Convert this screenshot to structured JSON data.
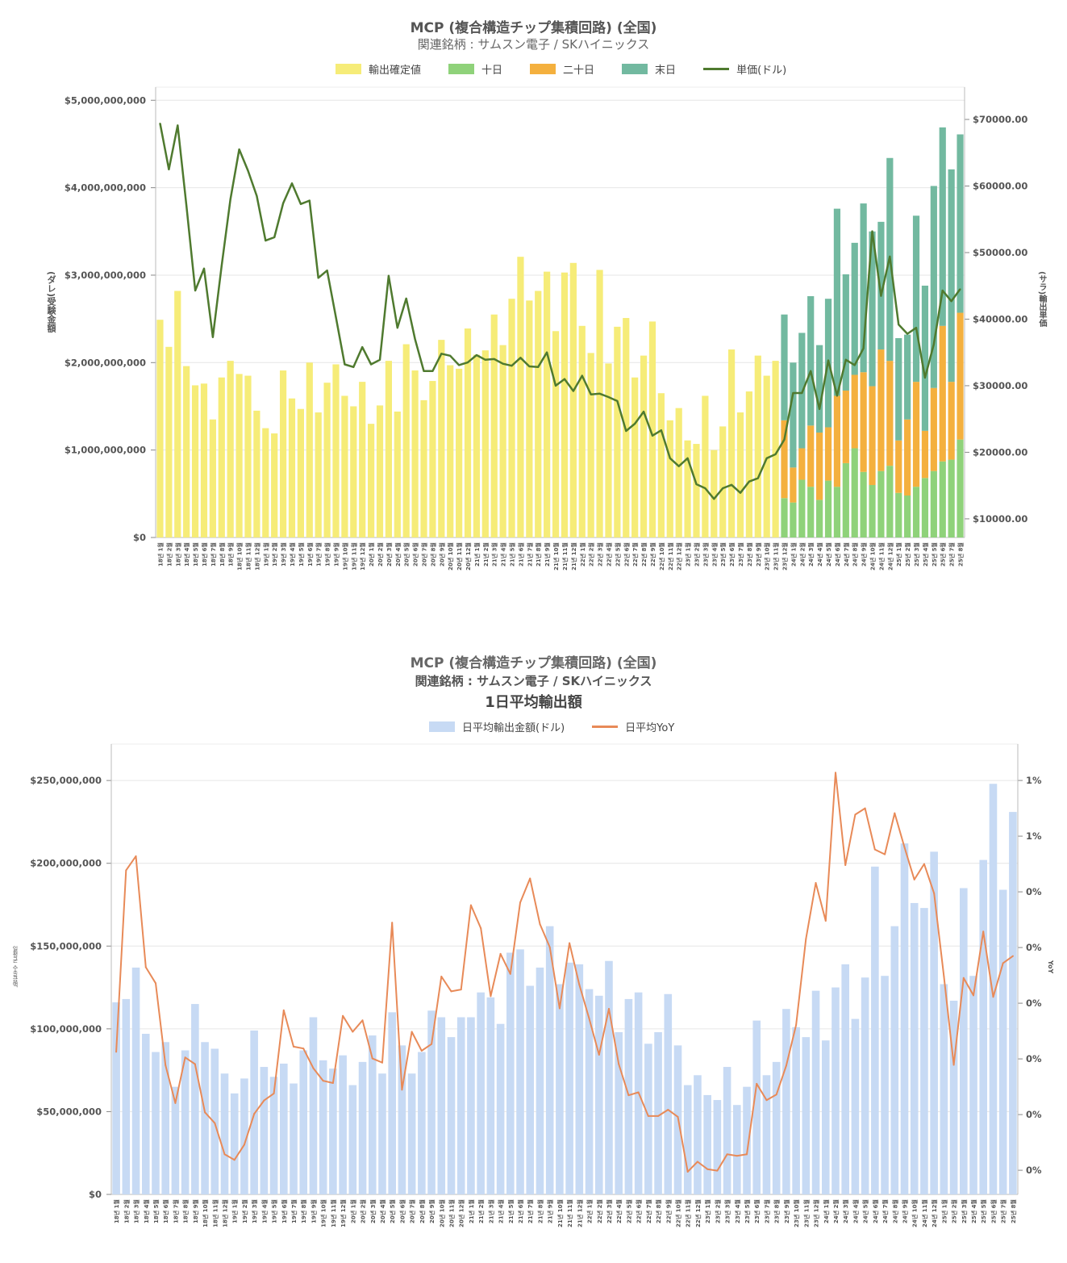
{
  "months": [
    "18년 1월",
    "18년 2월",
    "18년 3월",
    "18년 4월",
    "18년 5월",
    "18년 6월",
    "18년 7월",
    "18년 8월",
    "18년 9월",
    "18년 10월",
    "18년 11월",
    "18년 12월",
    "19년 1월",
    "19년 2월",
    "19년 3월",
    "19년 4월",
    "19년 5월",
    "19년 6월",
    "19년 7월",
    "19년 8월",
    "19년 9월",
    "19년 10월",
    "19년 11월",
    "19년 12월",
    "20년 1월",
    "20년 2월",
    "20년 3월",
    "20년 4월",
    "20년 5월",
    "20년 6월",
    "20년 7월",
    "20년 8월",
    "20년 9월",
    "20년 10월",
    "20년 11월",
    "20년 12월",
    "21년 1월",
    "21년 2월",
    "21년 3월",
    "21년 4월",
    "21년 5월",
    "21년 6월",
    "21년 7월",
    "21년 8월",
    "21년 9월",
    "21년 10월",
    "21년 11월",
    "21년 12월",
    "22년 1월",
    "22년 2월",
    "22년 3월",
    "22년 4월",
    "22년 5월",
    "22년 6월",
    "22년 7월",
    "22년 8월",
    "22년 9월",
    "22년 10월",
    "22년 11월",
    "22년 12월",
    "23년 1월",
    "23년 2월",
    "23년 3월",
    "23년 4월",
    "23년 5월",
    "23년 6월",
    "23년 7월",
    "23년 8월",
    "23년 9월",
    "23년 10월",
    "23년 11월",
    "23년 12월",
    "24년 1월",
    "24년 2월",
    "24년 3월",
    "24년 4월",
    "24년 5월",
    "24년 6월",
    "24년 7월",
    "24년 8월",
    "24년 9월",
    "24년 10월",
    "24년 11월",
    "24년 12월",
    "25년 1월",
    "25년 2월",
    "25년 3월",
    "25년 4월",
    "25년 5월",
    "25년 6월",
    "25년 7월",
    "25년 8월"
  ],
  "chart_data": [
    {
      "type": "bar",
      "title": "MCP (複合構造チップ集積回路) (全国)",
      "subtitle": "関連銘柄 : サムスン電子 / SKハイニックス",
      "ylabel": "(ダレ)受験金額",
      "y2label": "(サラ)輸出単価",
      "value_unit": "billion USD",
      "ylim": [
        0,
        5.15
      ],
      "y2lim": [
        7200,
        74850
      ],
      "yticks": [
        0,
        1,
        2,
        3,
        4,
        5
      ],
      "ytick_labels": [
        "$0",
        "$1,000,000,000",
        "$2,000,000,000",
        "$3,000,000,000",
        "$4,000,000,000",
        "$5,000,000,000"
      ],
      "y2ticks": [
        10000,
        20000,
        30000,
        40000,
        50000,
        60000,
        70000
      ],
      "y2tick_labels": [
        "$10000.00",
        "$20000.00",
        "$30000.00",
        "$40000.00",
        "$50000.00",
        "$60000.00",
        "$70000.00"
      ],
      "grid": true,
      "legend_position": "top-center",
      "series": [
        {
          "name": "輸出確定値",
          "kind": "bar",
          "color": "#f6ec78",
          "values": [
            2.49,
            2.18,
            2.82,
            1.96,
            1.74,
            1.76,
            1.35,
            1.83,
            2.02,
            1.87,
            1.85,
            1.45,
            1.25,
            1.19,
            1.91,
            1.59,
            1.47,
            2.0,
            1.43,
            1.77,
            1.98,
            1.62,
            1.5,
            1.78,
            1.3,
            1.51,
            2.02,
            1.44,
            2.21,
            1.91,
            1.57,
            1.79,
            2.26,
            1.97,
            1.93,
            2.39,
            2.09,
            2.14,
            2.55,
            2.2,
            2.73,
            3.21,
            2.71,
            2.82,
            3.04,
            2.36,
            3.03,
            3.14,
            2.42,
            2.11,
            3.06,
            1.99,
            2.41,
            2.51,
            1.83,
            2.08,
            2.47,
            1.65,
            1.34,
            1.48,
            1.11,
            1.07,
            1.62,
            1.0,
            1.27,
            2.15,
            1.43,
            1.67,
            2.08,
            1.85,
            2.02,
            null,
            null,
            null,
            null,
            null,
            null,
            null,
            null,
            null,
            null,
            null,
            null,
            null,
            null,
            null,
            null,
            null,
            null,
            null,
            null,
            null
          ]
        },
        {
          "name": "十日",
          "kind": "stack",
          "color": "#8fd27a",
          "values": [
            null,
            null,
            null,
            null,
            null,
            null,
            null,
            null,
            null,
            null,
            null,
            null,
            null,
            null,
            null,
            null,
            null,
            null,
            null,
            null,
            null,
            null,
            null,
            null,
            null,
            null,
            null,
            null,
            null,
            null,
            null,
            null,
            null,
            null,
            null,
            null,
            null,
            null,
            null,
            null,
            null,
            null,
            null,
            null,
            null,
            null,
            null,
            null,
            null,
            null,
            null,
            null,
            null,
            null,
            null,
            null,
            null,
            null,
            null,
            null,
            null,
            null,
            null,
            null,
            null,
            null,
            null,
            null,
            null,
            null,
            null,
            0.45,
            0.4,
            0.66,
            0.58,
            0.43,
            0.65,
            0.58,
            0.85,
            1.02,
            0.75,
            0.6,
            0.76,
            0.82,
            0.51,
            0.48,
            0.58,
            0.68,
            0.76,
            0.87,
            0.89,
            1.12
          ]
        },
        {
          "name": "二十日",
          "kind": "stack",
          "color": "#f4b03e",
          "values": [
            null,
            null,
            null,
            null,
            null,
            null,
            null,
            null,
            null,
            null,
            null,
            null,
            null,
            null,
            null,
            null,
            null,
            null,
            null,
            null,
            null,
            null,
            null,
            null,
            null,
            null,
            null,
            null,
            null,
            null,
            null,
            null,
            null,
            null,
            null,
            null,
            null,
            null,
            null,
            null,
            null,
            null,
            null,
            null,
            null,
            null,
            null,
            null,
            null,
            null,
            null,
            null,
            null,
            null,
            null,
            null,
            null,
            null,
            null,
            null,
            null,
            null,
            null,
            null,
            null,
            null,
            null,
            null,
            null,
            null,
            null,
            0.89,
            0.4,
            0.36,
            0.7,
            0.77,
            0.61,
            1.04,
            0.83,
            0.84,
            1.14,
            1.13,
            1.39,
            1.2,
            0.6,
            0.87,
            1.2,
            0.54,
            0.95,
            1.55,
            0.89,
            1.45
          ]
        },
        {
          "name": "末日",
          "kind": "stack",
          "color": "#72b9a0",
          "values": [
            null,
            null,
            null,
            null,
            null,
            null,
            null,
            null,
            null,
            null,
            null,
            null,
            null,
            null,
            null,
            null,
            null,
            null,
            null,
            null,
            null,
            null,
            null,
            null,
            null,
            null,
            null,
            null,
            null,
            null,
            null,
            null,
            null,
            null,
            null,
            null,
            null,
            null,
            null,
            null,
            null,
            null,
            null,
            null,
            null,
            null,
            null,
            null,
            null,
            null,
            null,
            null,
            null,
            null,
            null,
            null,
            null,
            null,
            null,
            null,
            null,
            null,
            null,
            null,
            null,
            null,
            null,
            null,
            null,
            null,
            null,
            1.21,
            1.2,
            1.32,
            1.48,
            1.0,
            1.47,
            2.14,
            1.33,
            1.51,
            1.93,
            1.77,
            1.46,
            2.32,
            1.17,
            0.97,
            1.9,
            1.66,
            2.31,
            2.27,
            2.43,
            2.04
          ]
        },
        {
          "name": "単価(ドル)",
          "kind": "line",
          "axis": "right",
          "color": "#4f7a2f",
          "values": [
            69400,
            62500,
            69100,
            57000,
            44300,
            47600,
            37300,
            48000,
            58000,
            65500,
            62300,
            58500,
            51800,
            52300,
            57400,
            60400,
            57300,
            57800,
            46200,
            47300,
            40300,
            33200,
            32800,
            35800,
            33200,
            33900,
            46500,
            38700,
            43100,
            37000,
            32200,
            32200,
            34800,
            34500,
            33100,
            33500,
            34600,
            33900,
            34000,
            33300,
            33000,
            34200,
            32900,
            32800,
            35000,
            30000,
            31000,
            29200,
            31500,
            28700,
            28800,
            28300,
            27700,
            23200,
            24300,
            26100,
            22500,
            23300,
            19100,
            17900,
            19100,
            15200,
            14600,
            13000,
            14600,
            15100,
            13900,
            15600,
            16100,
            19100,
            19700,
            21900,
            28900,
            28900,
            32200,
            26500,
            33800,
            28500,
            33900,
            33100,
            35600,
            53200,
            43500,
            49400,
            39200,
            37800,
            38700,
            31200,
            36200,
            44300,
            42700,
            44500
          ]
        }
      ]
    },
    {
      "type": "bar",
      "title": "MCP (複合構造チップ集積回路) (全国)",
      "subtitle": "関連銘柄 : サムスン電子 / SKハイニックス",
      "subtitle2": "1日平均輸出額",
      "ylabel": "일평균 수출금액",
      "y2label": "YoY",
      "value_unit": "million USD",
      "ylim": [
        0,
        272
      ],
      "y2lim": [
        -0.365,
        0.848
      ],
      "yticks": [
        0,
        50,
        100,
        150,
        200,
        250
      ],
      "ytick_labels": [
        "$0",
        "$50,000,000",
        "$100,000,000",
        "$150,000,000",
        "$200,000,000",
        "$250,000,000"
      ],
      "y2ticks": [
        -0.3,
        -0.15,
        0,
        0.15,
        0.3,
        0.45,
        0.6,
        0.75
      ],
      "y2tick_labels": [
        "0%",
        "0%",
        "0%",
        "0%",
        "0%",
        "0%",
        "1%",
        "1%"
      ],
      "grid": true,
      "legend_position": "top-center",
      "series": [
        {
          "name": "日平均輸出金額(ドル)",
          "kind": "bar",
          "color": "#c7daf4",
          "values": [
            116,
            118,
            137,
            97,
            86,
            92,
            65,
            87,
            115,
            92,
            88,
            73,
            61,
            70,
            99,
            77,
            71,
            79,
            67,
            87,
            107,
            81,
            76,
            84,
            66,
            80,
            96,
            73,
            110,
            90,
            73,
            86,
            111,
            107,
            95,
            107,
            107,
            122,
            119,
            103,
            146,
            148,
            126,
            137,
            162,
            127,
            140,
            139,
            124,
            120,
            141,
            98,
            118,
            122,
            91,
            98,
            121,
            90,
            66,
            72,
            60,
            57,
            77,
            54,
            65,
            105,
            72,
            80,
            112,
            101,
            95,
            123,
            93,
            125,
            139,
            106,
            131,
            198,
            132,
            162,
            212,
            176,
            173,
            207,
            127,
            117,
            185,
            132,
            202,
            248,
            184,
            231
          ]
        },
        {
          "name": "日平均YoY",
          "kind": "line",
          "axis": "right",
          "color": "#e88a58",
          "values": [
            0.019,
            0.508,
            0.546,
            0.247,
            0.204,
            -0.017,
            -0.119,
            0.004,
            -0.014,
            -0.144,
            -0.173,
            -0.257,
            -0.272,
            -0.231,
            -0.148,
            -0.112,
            -0.093,
            0.131,
            0.033,
            0.028,
            -0.025,
            -0.059,
            -0.065,
            0.116,
            0.073,
            0.104,
            0.001,
            -0.01,
            0.367,
            -0.083,
            0.073,
            0.022,
            0.04,
            0.222,
            0.182,
            0.187,
            0.414,
            0.352,
            0.169,
            0.283,
            0.229,
            0.421,
            0.486,
            0.363,
            0.301,
            0.136,
            0.312,
            0.2,
            0.109,
            0.011,
            0.135,
            -0.014,
            -0.098,
            -0.09,
            -0.154,
            -0.154,
            -0.137,
            -0.156,
            -0.304,
            -0.277,
            -0.297,
            -0.301,
            -0.257,
            -0.261,
            -0.257,
            -0.067,
            -0.111,
            -0.096,
            -0.018,
            0.091,
            0.323,
            0.474,
            0.372,
            0.771,
            0.522,
            0.658,
            0.675,
            0.564,
            0.551,
            0.662,
            0.57,
            0.483,
            0.525,
            0.446,
            0.222,
            -0.016,
            0.218,
            0.171,
            0.343,
            0.167,
            0.258,
            0.277
          ]
        }
      ]
    }
  ]
}
